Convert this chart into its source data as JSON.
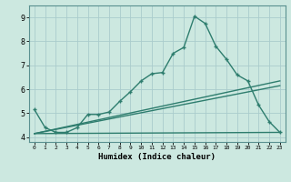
{
  "xlabel": "Humidex (Indice chaleur)",
  "ylabel": "",
  "bg_color": "#cce8e0",
  "grid_color": "#aacccc",
  "line_color": "#2e7d6e",
  "xlim": [
    -0.5,
    23.5
  ],
  "ylim": [
    3.8,
    9.5
  ],
  "xticks": [
    0,
    1,
    2,
    3,
    4,
    5,
    6,
    7,
    8,
    9,
    10,
    11,
    12,
    13,
    14,
    15,
    16,
    17,
    18,
    19,
    20,
    21,
    22,
    23
  ],
  "yticks": [
    4,
    5,
    6,
    7,
    8,
    9
  ],
  "series1_x": [
    0,
    1,
    2,
    3,
    4,
    5,
    6,
    7,
    8,
    9,
    10,
    11,
    12,
    13,
    14,
    15,
    16,
    17,
    18,
    19,
    20,
    21,
    22,
    23
  ],
  "series1_y": [
    5.15,
    4.4,
    4.2,
    4.2,
    4.4,
    4.95,
    4.95,
    5.05,
    5.5,
    5.9,
    6.35,
    6.65,
    6.7,
    7.5,
    7.75,
    9.05,
    8.75,
    7.8,
    7.25,
    6.6,
    6.35,
    5.35,
    4.65,
    4.2
  ],
  "series2_x": [
    0,
    23
  ],
  "series2_y": [
    4.15,
    6.35
  ],
  "series3_x": [
    0,
    23
  ],
  "series3_y": [
    4.15,
    6.15
  ],
  "series4_x": [
    0,
    23
  ],
  "series4_y": [
    4.15,
    4.2
  ]
}
